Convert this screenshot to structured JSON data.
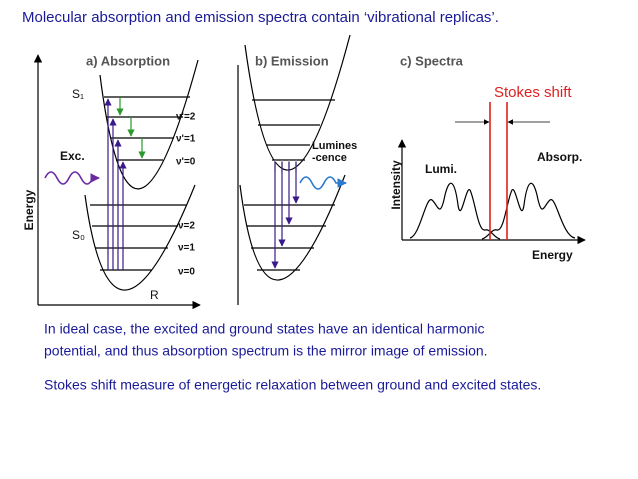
{
  "title": "Molecular absorption and emission spectra contain ‘vibrational replicas’.",
  "panels": [
    {
      "heading": "a) Absorption",
      "y_axis": "Energy",
      "x_axis": "R",
      "states": [
        "S₁",
        "S₀"
      ],
      "photon": "Exc.",
      "upper_levels": [
        "ν'=2",
        "ν'=1",
        "ν'=0"
      ],
      "lower_levels": [
        "ν=2",
        "ν=1",
        "ν=0"
      ]
    },
    {
      "heading": "b) Emission",
      "photon": "Lumines-cence"
    },
    {
      "heading": "c) Spectra",
      "y_axis": "Intensity",
      "x_axis": "Energy",
      "curves": [
        "Lumi.",
        "Absorp."
      ],
      "shift": "Stokes shift"
    }
  ],
  "notes": [
    "In ideal case, the excited and ground states have an identical harmonic",
    "potential, and thus absorption spectrum is the mirror image of emission.",
    "Stokes shift measure of energetic relaxation between ground and excited states."
  ]
}
